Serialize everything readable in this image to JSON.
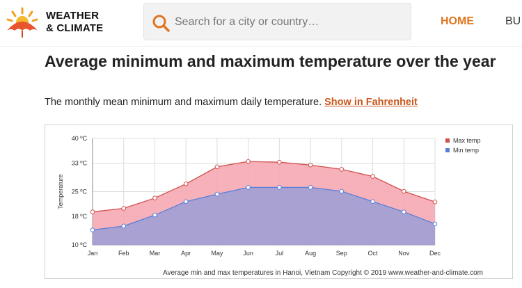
{
  "header": {
    "brand_line1": "WEATHER",
    "brand_line2": "& CLIMATE",
    "search_placeholder": "Search for a city or country…",
    "nav": {
      "home": "HOME",
      "next": "BU"
    }
  },
  "page": {
    "title": "Average minimum and maximum temperature over the year",
    "subtitle": "The monthly mean minimum and maximum daily temperature.",
    "link_label": "Show in Fahrenheit",
    "caption": "Average min and max temperatures in Hanoi, Vietnam   Copyright © 2019 www.weather-and-climate.com"
  },
  "colors": {
    "accent": "#e07520",
    "link": "#c8561a",
    "max_line": "#d0504c",
    "max_fill": "#f5a8b2",
    "min_line": "#5a7ed8",
    "min_fill": "#a49ccf"
  },
  "icons": {
    "logo": "umbrella-sun-logo",
    "search": "search-icon"
  },
  "chart_data": {
    "type": "area",
    "categories": [
      "Jan",
      "Feb",
      "Mar",
      "Apr",
      "May",
      "Jun",
      "Jul",
      "Aug",
      "Sep",
      "Oct",
      "Nov",
      "Dec"
    ],
    "series": [
      {
        "name": "Max temp",
        "values": [
          19.3,
          20.3,
          23.2,
          27.2,
          32.0,
          33.5,
          33.3,
          32.5,
          31.3,
          29.3,
          25.1,
          22.1
        ]
      },
      {
        "name": "Min temp",
        "values": [
          14.2,
          15.3,
          18.4,
          22.2,
          24.3,
          26.2,
          26.2,
          26.2,
          25.1,
          22.2,
          19.3,
          15.9
        ]
      }
    ],
    "ylabel": "Temperature",
    "ylim": [
      10,
      40
    ],
    "yticks": [
      10,
      18,
      25,
      33,
      40
    ],
    "ytick_labels": [
      "10 ºC",
      "18 ºC",
      "25 ºC",
      "33 ºC",
      "40 ºC"
    ],
    "grid": true,
    "legend_position": "top-right"
  }
}
